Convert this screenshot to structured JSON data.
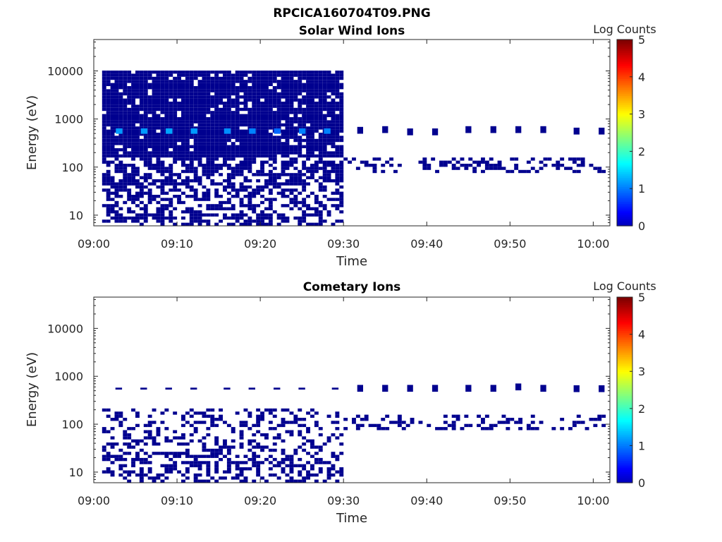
{
  "figure": {
    "title": "RPCICA160704T09.PNG"
  },
  "colors": {
    "axis": "#262626",
    "pixel": "#00008f",
    "pixel_mid": "#0a24c8",
    "pixel_hot": "#1f5cff"
  },
  "chart_data": [
    {
      "type": "heatmap",
      "title": "Solar Wind Ions",
      "xlabel": "Time",
      "ylabel": "Energy (eV)",
      "xlim": [
        "09:00",
        "10:02"
      ],
      "ylim": [
        6,
        45000
      ],
      "yscale": "log",
      "xticks": [
        "09:00",
        "09:10",
        "09:20",
        "09:30",
        "09:40",
        "09:50",
        "10:00"
      ],
      "yticks": [
        "10",
        "100",
        "1000",
        "10000"
      ],
      "colorbar": {
        "label": "Log Counts",
        "range": [
          0,
          5
        ],
        "ticks": [
          "0",
          "1",
          "2",
          "3",
          "4",
          "5"
        ],
        "colormap": "jet"
      },
      "regions": [
        {
          "t": [
            "09:01",
            "09:30"
          ],
          "energy": [
            6,
            11000
          ],
          "log_counts": 0,
          "fill": "mostly dense above 150 eV, sparse below 100 eV"
        }
      ],
      "peaks": [
        {
          "time": "09:03",
          "energy": 560,
          "log_counts": 0.8
        },
        {
          "time": "09:06",
          "energy": 560,
          "log_counts": 0.8
        },
        {
          "time": "09:09",
          "energy": 560,
          "log_counts": 0.9
        },
        {
          "time": "09:12",
          "energy": 560,
          "log_counts": 0.8
        },
        {
          "time": "09:16",
          "energy": 560,
          "log_counts": 0.7
        },
        {
          "time": "09:19",
          "energy": 560,
          "log_counts": 0.6
        },
        {
          "time": "09:22",
          "energy": 560,
          "log_counts": 0.4
        },
        {
          "time": "09:25",
          "energy": 560,
          "log_counts": 0.6
        },
        {
          "time": "09:28",
          "energy": 560,
          "log_counts": 0.6
        }
      ],
      "spots": [
        {
          "time": "09:32",
          "energy": 580
        },
        {
          "time": "09:35",
          "energy": 600
        },
        {
          "time": "09:38",
          "energy": 540
        },
        {
          "time": "09:41",
          "energy": 540
        },
        {
          "time": "09:45",
          "energy": 600
        },
        {
          "time": "09:48",
          "energy": 600
        },
        {
          "time": "09:51",
          "energy": 600
        },
        {
          "time": "09:54",
          "energy": 600
        },
        {
          "time": "09:58",
          "energy": 560
        },
        {
          "time": "10:01",
          "energy": 560
        }
      ],
      "low_band": {
        "t": [
          "09:30",
          "10:02"
        ],
        "energy": [
          70,
          160
        ]
      }
    },
    {
      "type": "heatmap",
      "title": "Cometary Ions",
      "xlabel": "Time",
      "ylabel": "Energy (eV)",
      "xlim": [
        "09:00",
        "10:02"
      ],
      "ylim": [
        6,
        45000
      ],
      "yscale": "log",
      "xticks": [
        "09:00",
        "09:10",
        "09:20",
        "09:30",
        "09:40",
        "09:50",
        "10:00"
      ],
      "yticks": [
        "10",
        "100",
        "1000",
        "10000"
      ],
      "colorbar": {
        "label": "Log Counts",
        "range": [
          0,
          5
        ],
        "ticks": [
          "0",
          "1",
          "2",
          "3",
          "4",
          "5"
        ],
        "colormap": "jet"
      },
      "regions": [
        {
          "t": [
            "09:01",
            "09:30"
          ],
          "energy": [
            6,
            230
          ],
          "log_counts": 0,
          "fill": "sparse columns below 30 eV, streaks 40-230 eV"
        }
      ],
      "streaks_550": [
        "09:03",
        "09:06",
        "09:09",
        "09:12",
        "09:16",
        "09:19",
        "09:22",
        "09:25",
        "09:29"
      ],
      "spots": [
        {
          "time": "09:32",
          "energy": 560
        },
        {
          "time": "09:35",
          "energy": 560
        },
        {
          "time": "09:38",
          "energy": 560
        },
        {
          "time": "09:41",
          "energy": 560
        },
        {
          "time": "09:45",
          "energy": 560
        },
        {
          "time": "09:48",
          "energy": 560
        },
        {
          "time": "09:51",
          "energy": 600
        },
        {
          "time": "09:54",
          "energy": 560
        },
        {
          "time": "09:58",
          "energy": 550
        },
        {
          "time": "10:01",
          "energy": 550
        }
      ],
      "low_band": {
        "t": [
          "09:30",
          "10:02"
        ],
        "energy": [
          70,
          160
        ]
      }
    }
  ]
}
